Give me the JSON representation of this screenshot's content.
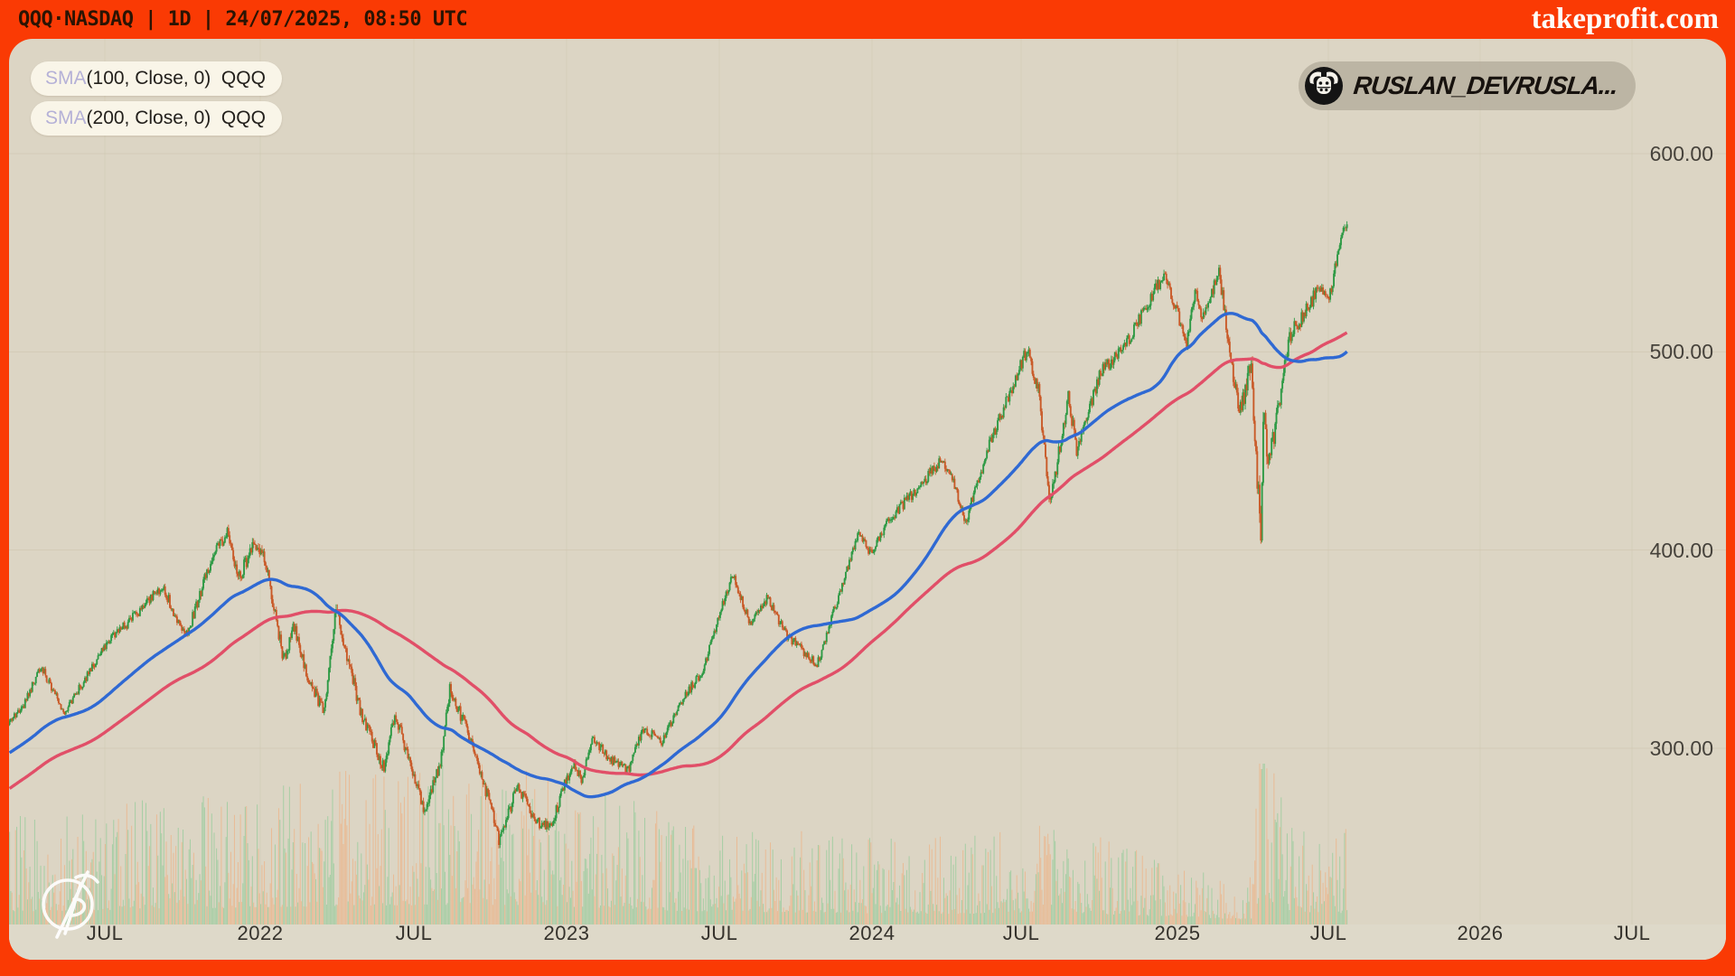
{
  "header": {
    "symbol_line": "QQQ·NASDAQ | 1D | 24/07/2025, 08:50 UTC",
    "brand": "takeprofit.com",
    "banner_color": "#fa3a04",
    "banner_text_color": "#2b1403"
  },
  "legend": {
    "indicators": [
      {
        "name": "SMA",
        "params": "(100, Close, 0)",
        "symbol": "QQQ",
        "line_color": "#2f69d3"
      },
      {
        "name": "SMA",
        "params": "(200, Close, 0)",
        "symbol": "QQQ",
        "line_color": "#e14f68"
      }
    ],
    "sma_label_color": "#b5b1d7"
  },
  "user_badge": {
    "username": "RUSLAN_DEVRUSLA...",
    "avatar": "bull-icon"
  },
  "watermark": "takeprofit-monogram",
  "chart_data": {
    "type": "candlestick",
    "symbol": "QQQ",
    "exchange": "NASDAQ",
    "timeframe": "1D",
    "as_of": "24/07/2025, 08:50 UTC",
    "last_close": 566,
    "grid": true,
    "y_axis": {
      "side": "right",
      "values": [
        600,
        500,
        400,
        300
      ],
      "labels": [
        "600.00",
        "500.00",
        "400.00",
        "300.00"
      ],
      "visible_range": [
        218,
        660
      ]
    },
    "x_axis": {
      "labels": [
        "JUL",
        "2022",
        "JUL",
        "2023",
        "JUL",
        "2024",
        "JUL",
        "2025",
        "JUL",
        "2026",
        "JUL"
      ],
      "data_start": "2021-03",
      "data_end": "2025-07-24",
      "future_blank_until": "2026-08"
    },
    "overlays": [
      {
        "type": "SMA",
        "period": 100,
        "source": "Close",
        "offset": 0,
        "color": "#2f69d3"
      },
      {
        "type": "SMA",
        "period": 200,
        "source": "Close",
        "offset": 0,
        "color": "#e14f68"
      }
    ],
    "price_keyframes": [
      [
        -200,
        230
      ],
      [
        -170,
        252
      ],
      [
        -140,
        283
      ],
      [
        -120,
        265
      ],
      [
        -90,
        280
      ],
      [
        -60,
        298
      ],
      [
        -40,
        310
      ],
      [
        -20,
        300
      ],
      [
        0,
        313
      ],
      [
        12,
        322
      ],
      [
        26,
        342
      ],
      [
        45,
        318
      ],
      [
        60,
        332
      ],
      [
        80,
        352
      ],
      [
        105,
        367
      ],
      [
        128,
        382
      ],
      [
        147,
        355
      ],
      [
        170,
        398
      ],
      [
        182,
        408
      ],
      [
        192,
        386
      ],
      [
        203,
        402
      ],
      [
        212,
        400
      ],
      [
        229,
        345
      ],
      [
        238,
        362
      ],
      [
        248,
        338
      ],
      [
        263,
        318
      ],
      [
        273,
        370
      ],
      [
        295,
        315
      ],
      [
        313,
        290
      ],
      [
        322,
        317
      ],
      [
        333,
        296
      ],
      [
        340,
        283
      ],
      [
        347,
        269
      ],
      [
        360,
        293
      ],
      [
        368,
        331
      ],
      [
        385,
        305
      ],
      [
        400,
        275
      ],
      [
        409,
        254
      ],
      [
        425,
        281
      ],
      [
        440,
        263
      ],
      [
        452,
        260
      ],
      [
        470,
        292
      ],
      [
        478,
        285
      ],
      [
        488,
        305
      ],
      [
        500,
        295
      ],
      [
        517,
        289
      ],
      [
        530,
        310
      ],
      [
        545,
        303
      ],
      [
        560,
        322
      ],
      [
        580,
        340
      ],
      [
        604,
        388
      ],
      [
        620,
        362
      ],
      [
        633,
        376
      ],
      [
        650,
        357
      ],
      [
        675,
        342
      ],
      [
        709,
        408
      ],
      [
        720,
        398
      ],
      [
        735,
        415
      ],
      [
        779,
        445
      ],
      [
        790,
        432
      ],
      [
        799,
        414
      ],
      [
        820,
        455
      ],
      [
        851,
        502
      ],
      [
        860,
        480
      ],
      [
        870,
        423
      ],
      [
        885,
        478
      ],
      [
        892,
        450
      ],
      [
        912,
        490
      ],
      [
        930,
        500
      ],
      [
        965,
        539
      ],
      [
        984,
        505
      ],
      [
        992,
        531
      ],
      [
        996,
        515
      ],
      [
        1011,
        540
      ],
      [
        1028,
        468
      ],
      [
        1038,
        494
      ],
      [
        1046,
        404
      ],
      [
        1048,
        466
      ],
      [
        1053,
        444
      ],
      [
        1070,
        508
      ],
      [
        1085,
        522
      ],
      [
        1095,
        533
      ],
      [
        1103,
        526
      ],
      [
        1110,
        550
      ],
      [
        1118,
        566
      ]
    ],
    "volatility_keyframes": [
      [
        -200,
        0.9
      ],
      [
        0,
        0.85
      ],
      [
        150,
        0.95
      ],
      [
        200,
        1.25
      ],
      [
        260,
        1.5
      ],
      [
        340,
        1.6
      ],
      [
        420,
        1.55
      ],
      [
        470,
        1.35
      ],
      [
        520,
        1.1
      ],
      [
        560,
        0.95
      ],
      [
        640,
        0.9
      ],
      [
        720,
        0.8
      ],
      [
        800,
        0.9
      ],
      [
        851,
        0.95
      ],
      [
        870,
        1.35
      ],
      [
        900,
        0.95
      ],
      [
        965,
        0.85
      ],
      [
        1011,
        0.95
      ],
      [
        1030,
        1.5
      ],
      [
        1046,
        2.6
      ],
      [
        1053,
        1.8
      ],
      [
        1070,
        1.1
      ],
      [
        1100,
        0.85
      ],
      [
        1118,
        0.75
      ]
    ],
    "volume_keyframes": [
      [
        -200,
        0.9
      ],
      [
        0,
        0.95
      ],
      [
        200,
        1.25
      ],
      [
        300,
        1.4
      ],
      [
        420,
        1.45
      ],
      [
        490,
        1.25
      ],
      [
        560,
        1.0
      ],
      [
        640,
        0.9
      ],
      [
        720,
        0.82
      ],
      [
        800,
        0.78
      ],
      [
        870,
        0.95
      ],
      [
        930,
        0.7
      ],
      [
        965,
        0.6
      ],
      [
        1000,
        0.5
      ],
      [
        1020,
        0.32
      ],
      [
        1040,
        0.45
      ],
      [
        1046,
        2.5
      ],
      [
        1052,
        2.0
      ],
      [
        1060,
        1.3
      ],
      [
        1075,
        0.95
      ],
      [
        1100,
        0.85
      ],
      [
        1118,
        0.85
      ]
    ],
    "colors": {
      "up": "#2e9a45",
      "down": "#c95a28",
      "volume_up": "#86ca92",
      "volume_down": "#f3a873",
      "sma_100": "#2f69d3",
      "sma_200": "#e14f68",
      "background": "#dcd5c4",
      "axis_band": "#ded9c9",
      "grid": "#cdc4ad",
      "axis_text": "#46423b"
    }
  }
}
